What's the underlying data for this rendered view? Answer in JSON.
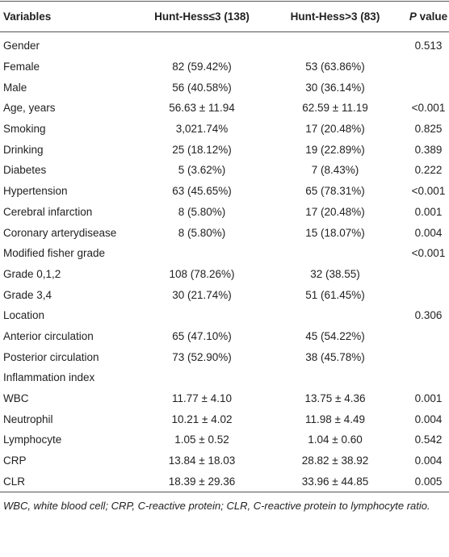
{
  "table": {
    "header": [
      "Variables",
      "Hunt-Hess≤3 (138)",
      "Hunt-Hess>3 (83)",
      "P value"
    ],
    "rows": [
      [
        "Gender",
        "",
        "",
        "0.513"
      ],
      [
        "Female",
        "82 (59.42%)",
        "53 (63.86%)",
        ""
      ],
      [
        "Male",
        "56 (40.58%)",
        "30 (36.14%)",
        ""
      ],
      [
        "Age, years",
        "56.63 ± 11.94",
        "62.59 ± 11.19",
        "<0.001"
      ],
      [
        "Smoking",
        "3,021.74%",
        "17 (20.48%)",
        "0.825"
      ],
      [
        "Drinking",
        "25 (18.12%)",
        "19 (22.89%)",
        "0.389"
      ],
      [
        "Diabetes",
        "5 (3.62%)",
        "7 (8.43%)",
        "0.222"
      ],
      [
        "Hypertension",
        "63 (45.65%)",
        "65 (78.31%)",
        "<0.001"
      ],
      [
        "Cerebral infarction",
        "8 (5.80%)",
        "17 (20.48%)",
        "0.001"
      ],
      [
        "Coronary arterydisease",
        "8 (5.80%)",
        "15 (18.07%)",
        "0.004"
      ],
      [
        "Modified fisher grade",
        "",
        "",
        "<0.001"
      ],
      [
        "Grade 0,1,2",
        "108 (78.26%)",
        "32 (38.55)",
        ""
      ],
      [
        "Grade 3,4",
        "30 (21.74%)",
        "51 (61.45%)",
        ""
      ],
      [
        "Location",
        "",
        "",
        "0.306"
      ],
      [
        "Anterior circulation",
        "65 (47.10%)",
        "45 (54.22%)",
        ""
      ],
      [
        "Posterior circulation",
        "73 (52.90%)",
        "38 (45.78%)",
        ""
      ],
      [
        "Inflammation index",
        "",
        "",
        ""
      ],
      [
        "WBC",
        "11.77 ± 4.10",
        "13.75 ± 4.36",
        "0.001"
      ],
      [
        "Neutrophil",
        "10.21 ± 4.02",
        "11.98 ± 4.49",
        "0.004"
      ],
      [
        "Lymphocyte",
        "1.05 ± 0.52",
        "1.04 ± 0.60",
        "0.542"
      ],
      [
        "CRP",
        "13.84 ± 18.03",
        "28.82 ± 38.92",
        "0.004"
      ],
      [
        "CLR",
        "18.39 ± 29.36",
        "33.96 ± 44.85",
        "0.005"
      ]
    ],
    "footnote": "WBC, white blood cell; CRP, C-reactive protein; CLR, C-reactive protein to lymphocyte ratio."
  }
}
